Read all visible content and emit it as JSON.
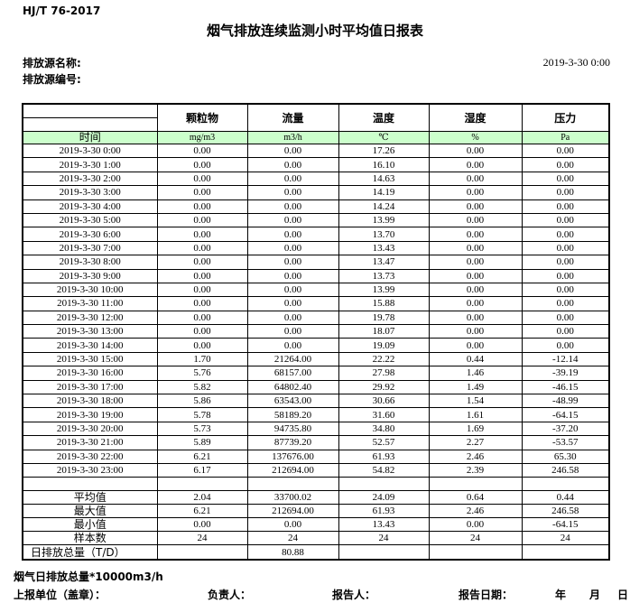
{
  "header": {
    "standard_no": "HJ/T  76-2017",
    "title": "烟气排放连续监测小时平均值日报表",
    "source_name_label": "排放源名称:",
    "source_code_label": "排放源编号:",
    "datetime": "2019-3-30 0:00"
  },
  "table": {
    "time_label": "时间",
    "columns": [
      "颗粒物",
      "流量",
      "温度",
      "湿度",
      "压力"
    ],
    "units": [
      "mg/m3",
      "m3/h",
      "℃",
      "%",
      "Pa"
    ],
    "rows": [
      {
        "time": "2019-3-30 0:00",
        "values": [
          "0.00",
          "0.00",
          "17.26",
          "0.00",
          "0.00"
        ]
      },
      {
        "time": "2019-3-30 1:00",
        "values": [
          "0.00",
          "0.00",
          "16.10",
          "0.00",
          "0.00"
        ]
      },
      {
        "time": "2019-3-30 2:00",
        "values": [
          "0.00",
          "0.00",
          "14.63",
          "0.00",
          "0.00"
        ]
      },
      {
        "time": "2019-3-30 3:00",
        "values": [
          "0.00",
          "0.00",
          "14.19",
          "0.00",
          "0.00"
        ]
      },
      {
        "time": "2019-3-30 4:00",
        "values": [
          "0.00",
          "0.00",
          "14.24",
          "0.00",
          "0.00"
        ]
      },
      {
        "time": "2019-3-30 5:00",
        "values": [
          "0.00",
          "0.00",
          "13.99",
          "0.00",
          "0.00"
        ]
      },
      {
        "time": "2019-3-30 6:00",
        "values": [
          "0.00",
          "0.00",
          "13.70",
          "0.00",
          "0.00"
        ]
      },
      {
        "time": "2019-3-30 7:00",
        "values": [
          "0.00",
          "0.00",
          "13.43",
          "0.00",
          "0.00"
        ]
      },
      {
        "time": "2019-3-30 8:00",
        "values": [
          "0.00",
          "0.00",
          "13.47",
          "0.00",
          "0.00"
        ]
      },
      {
        "time": "2019-3-30 9:00",
        "values": [
          "0.00",
          "0.00",
          "13.73",
          "0.00",
          "0.00"
        ]
      },
      {
        "time": "2019-3-30 10:00",
        "values": [
          "0.00",
          "0.00",
          "13.99",
          "0.00",
          "0.00"
        ]
      },
      {
        "time": "2019-3-30 11:00",
        "values": [
          "0.00",
          "0.00",
          "15.88",
          "0.00",
          "0.00"
        ]
      },
      {
        "time": "2019-3-30 12:00",
        "values": [
          "0.00",
          "0.00",
          "19.78",
          "0.00",
          "0.00"
        ]
      },
      {
        "time": "2019-3-30 13:00",
        "values": [
          "0.00",
          "0.00",
          "18.07",
          "0.00",
          "0.00"
        ]
      },
      {
        "time": "2019-3-30 14:00",
        "values": [
          "0.00",
          "0.00",
          "19.09",
          "0.00",
          "0.00"
        ]
      },
      {
        "time": "2019-3-30 15:00",
        "values": [
          "1.70",
          "21264.00",
          "22.22",
          "0.44",
          "-12.14"
        ]
      },
      {
        "time": "2019-3-30 16:00",
        "values": [
          "5.76",
          "68157.00",
          "27.98",
          "1.46",
          "-39.19"
        ]
      },
      {
        "time": "2019-3-30 17:00",
        "values": [
          "5.82",
          "64802.40",
          "29.92",
          "1.49",
          "-46.15"
        ]
      },
      {
        "time": "2019-3-30 18:00",
        "values": [
          "5.86",
          "63543.00",
          "30.66",
          "1.54",
          "-48.99"
        ]
      },
      {
        "time": "2019-3-30 19:00",
        "values": [
          "5.78",
          "58189.20",
          "31.60",
          "1.61",
          "-64.15"
        ]
      },
      {
        "time": "2019-3-30 20:00",
        "values": [
          "5.73",
          "94735.80",
          "34.80",
          "1.69",
          "-37.20"
        ]
      },
      {
        "time": "2019-3-30 21:00",
        "values": [
          "5.89",
          "87739.20",
          "52.57",
          "2.27",
          "-53.57"
        ]
      },
      {
        "time": "2019-3-30 22:00",
        "values": [
          "6.21",
          "137676.00",
          "61.93",
          "2.46",
          "65.30"
        ]
      },
      {
        "time": "2019-3-30 23:00",
        "values": [
          "6.17",
          "212694.00",
          "54.82",
          "2.39",
          "246.58"
        ]
      }
    ],
    "summary": [
      {
        "label": "平均值",
        "values": [
          "2.04",
          "33700.02",
          "24.09",
          "0.64",
          "0.44"
        ]
      },
      {
        "label": "最大值",
        "values": [
          "6.21",
          "212694.00",
          "61.93",
          "2.46",
          "246.58"
        ]
      },
      {
        "label": "最小值",
        "values": [
          "0.00",
          "0.00",
          "13.43",
          "0.00",
          "-64.15"
        ]
      },
      {
        "label": "样本数",
        "values": [
          "24",
          "24",
          "24",
          "24",
          "24"
        ]
      },
      {
        "label": "日排放总量（T/D）",
        "values": [
          "",
          "80.88",
          "",
          "",
          ""
        ],
        "align": "left"
      }
    ]
  },
  "footer": {
    "note": "烟气日排放总量*10000m3/h",
    "report_unit_label": "上报单位（盖章）：",
    "responsible_label": "负责人：",
    "reporter_label": "报告人：",
    "report_date_label": "报告日期：",
    "year_label": "年",
    "month_label": "月",
    "day_label": "日"
  },
  "colors": {
    "unit_row_bg": "#ccffcc",
    "border": "#000000"
  }
}
